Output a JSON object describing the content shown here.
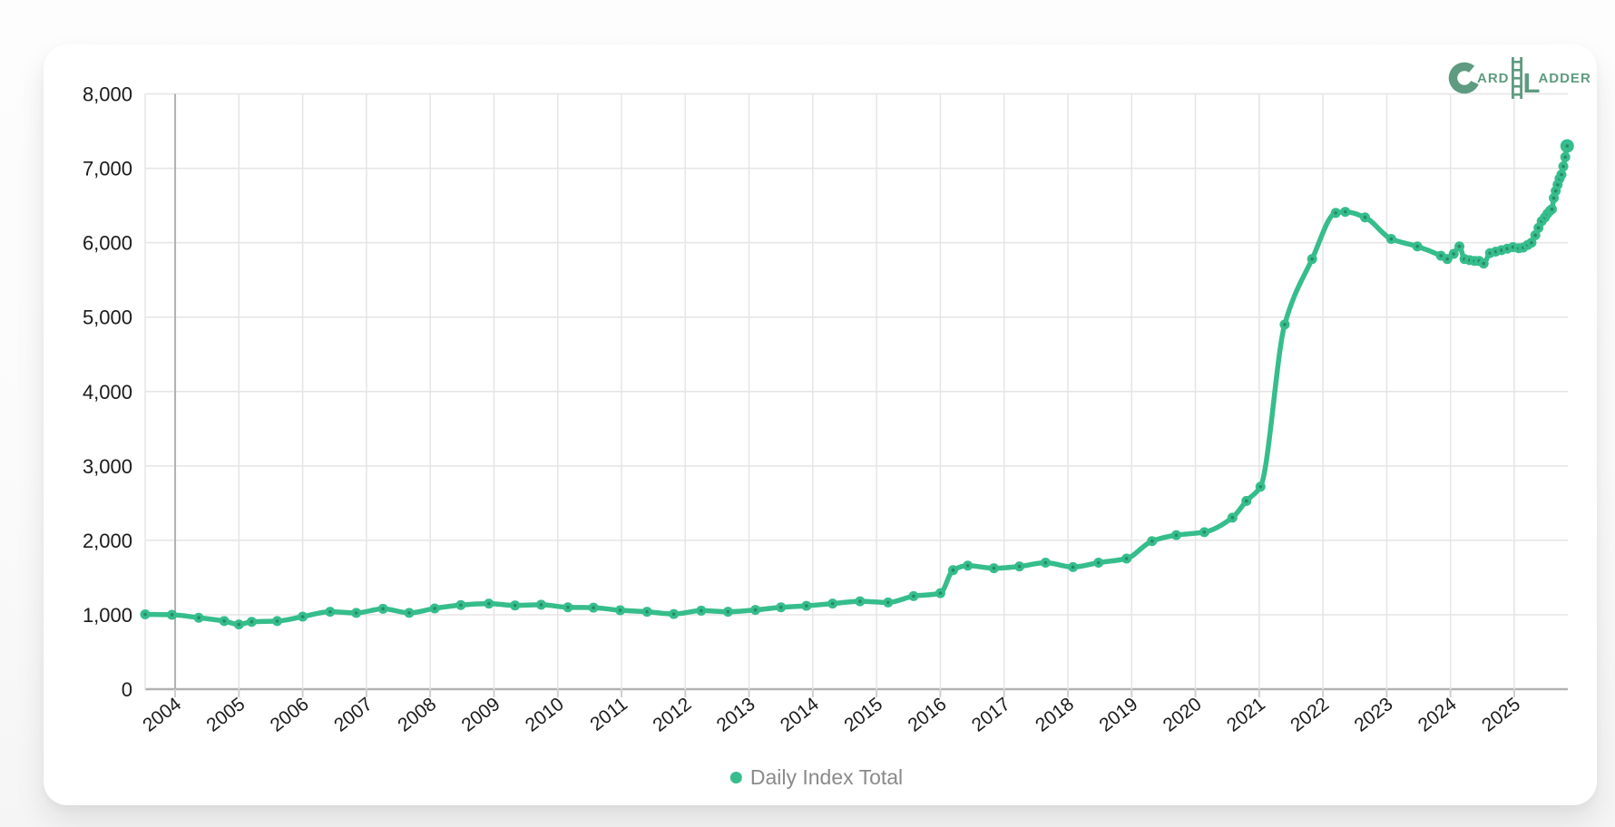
{
  "page": {
    "background_top": "#fdfdfd",
    "background_bottom": "#f5f5f6"
  },
  "card": {
    "background": "#ffffff"
  },
  "logo": {
    "c": "C",
    "ard": "ARD",
    "l": "L",
    "adder": "ADDER",
    "color": "#5e9b80",
    "name": "Card Ladder"
  },
  "legend": {
    "label": "Daily Index Total",
    "dot_color": "#36bd8c",
    "text_color": "#8a8a8a",
    "position": "bottom-center"
  },
  "chart_data": {
    "type": "line",
    "title": "",
    "xlabel": "",
    "ylabel": "",
    "grid": true,
    "legend_position": "bottom",
    "xlim": [
      2003.53,
      2025.84
    ],
    "ylim": [
      0,
      8000
    ],
    "x_ticks": [
      "2004",
      "2005",
      "2006",
      "2007",
      "2008",
      "2009",
      "2010",
      "2011",
      "2012",
      "2013",
      "2014",
      "2015",
      "2016",
      "2017",
      "2018",
      "2019",
      "2020",
      "2021",
      "2022",
      "2023",
      "2024",
      "2025"
    ],
    "y_ticks": [
      "0",
      "1,000",
      "2,000",
      "3,000",
      "4,000",
      "5,000",
      "6,000",
      "7,000",
      "8,000"
    ],
    "colors": {
      "line": "#36bd8c",
      "grid_light": "#e5e5e5",
      "grid_dark": "#b2b2b2",
      "tick_mark": "#cfcfcf",
      "tick_text": "#1b1b1b"
    },
    "series": [
      {
        "name": "Daily Index Total",
        "color": "#36bd8c",
        "points": [
          [
            2003.53,
            1005
          ],
          [
            2003.95,
            1000
          ],
          [
            2004.37,
            960
          ],
          [
            2004.77,
            915
          ],
          [
            2005.0,
            870
          ],
          [
            2005.2,
            905
          ],
          [
            2005.6,
            915
          ],
          [
            2006.0,
            975
          ],
          [
            2006.43,
            1040
          ],
          [
            2006.84,
            1025
          ],
          [
            2007.26,
            1080
          ],
          [
            2007.67,
            1025
          ],
          [
            2008.07,
            1085
          ],
          [
            2008.48,
            1130
          ],
          [
            2008.92,
            1150
          ],
          [
            2009.33,
            1125
          ],
          [
            2009.74,
            1135
          ],
          [
            2010.16,
            1100
          ],
          [
            2010.56,
            1095
          ],
          [
            2010.98,
            1060
          ],
          [
            2011.4,
            1040
          ],
          [
            2011.82,
            1010
          ],
          [
            2012.25,
            1055
          ],
          [
            2012.67,
            1040
          ],
          [
            2013.1,
            1065
          ],
          [
            2013.5,
            1100
          ],
          [
            2013.9,
            1120
          ],
          [
            2014.31,
            1150
          ],
          [
            2014.74,
            1180
          ],
          [
            2015.18,
            1165
          ],
          [
            2015.58,
            1250
          ],
          [
            2016.0,
            1290
          ],
          [
            2016.2,
            1600
          ],
          [
            2016.43,
            1660
          ],
          [
            2016.84,
            1625
          ],
          [
            2017.24,
            1650
          ],
          [
            2017.65,
            1700
          ],
          [
            2018.08,
            1640
          ],
          [
            2018.48,
            1700
          ],
          [
            2018.92,
            1755
          ],
          [
            2019.32,
            1990
          ],
          [
            2019.7,
            2070
          ],
          [
            2020.14,
            2110
          ],
          [
            2020.58,
            2305
          ],
          [
            2020.8,
            2530
          ],
          [
            2021.02,
            2720
          ],
          [
            2021.4,
            4900
          ],
          [
            2021.83,
            5780
          ],
          [
            2022.2,
            6400
          ],
          [
            2022.35,
            6415
          ],
          [
            2022.66,
            6340
          ],
          [
            2023.07,
            6050
          ],
          [
            2023.48,
            5950
          ],
          [
            2023.85,
            5825
          ],
          [
            2023.95,
            5780
          ],
          [
            2024.05,
            5850
          ],
          [
            2024.14,
            5950
          ],
          [
            2024.22,
            5780
          ],
          [
            2024.3,
            5765
          ],
          [
            2024.38,
            5755
          ],
          [
            2024.45,
            5755
          ],
          [
            2024.52,
            5720
          ],
          [
            2024.62,
            5860
          ],
          [
            2024.71,
            5880
          ],
          [
            2024.8,
            5900
          ],
          [
            2024.89,
            5920
          ],
          [
            2024.98,
            5940
          ],
          [
            2025.07,
            5925
          ],
          [
            2025.14,
            5935
          ],
          [
            2025.21,
            5970
          ],
          [
            2025.27,
            6000
          ],
          [
            2025.33,
            6100
          ],
          [
            2025.38,
            6200
          ],
          [
            2025.43,
            6290
          ],
          [
            2025.48,
            6340
          ],
          [
            2025.52,
            6390
          ],
          [
            2025.56,
            6430
          ],
          [
            2025.59,
            6450
          ],
          [
            2025.62,
            6600
          ],
          [
            2025.65,
            6695
          ],
          [
            2025.68,
            6780
          ],
          [
            2025.71,
            6860
          ],
          [
            2025.74,
            6915
          ],
          [
            2025.77,
            7025
          ],
          [
            2025.8,
            7150
          ],
          [
            2025.83,
            7300
          ]
        ]
      }
    ]
  }
}
